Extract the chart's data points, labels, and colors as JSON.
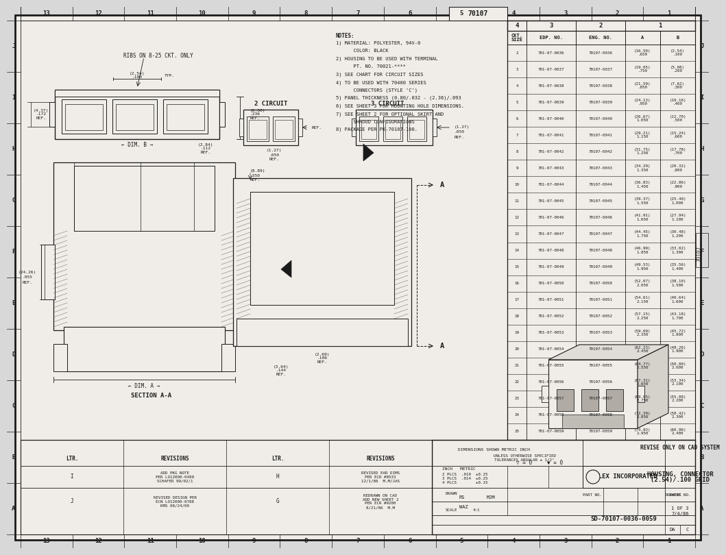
{
  "bg_color": "#d8d8d8",
  "paper_color": "#f0ede8",
  "line_color": "#1a1a1a",
  "title": "HOUSING, CONNECTOR\n(2.54)/.100 GRID",
  "company": "MOLEX INCORPORATED",
  "drawing_number": "SD-70107-0036-0059",
  "sheet": "1 OF 3",
  "date": "7/4/86",
  "notes": [
    "NOTES:",
    "1) MATERIAL: POLYESTER, 94V-0",
    "      COLOR: BLACK",
    "2) HOUSING TO BE USED WITH TERMINAL",
    "      PT. NO. 70021-****",
    "3) SEE CHART FOR CIRCUIT SIZES",
    "4) TO BE USED WITH 70400 SERIES",
    "      CONNECTORS (STYLE 'C')",
    "5) PANEL THICKNESS (0.80/.032 - (2.36)/.093",
    "6) SEE SHEET 3 FOR MOUNTING HOLE DIMENSIONS.",
    "7) SEE SHEET 2 FOR OPTIONAL SKIRT AND",
    "      SHROUD CONFIGURATIONS",
    "8) PACKAGE PER PK-70107-100."
  ],
  "grid_cols": [
    "13",
    "12",
    "11",
    "10",
    "9",
    "8",
    "7",
    "6",
    "4",
    "3",
    "2",
    "1"
  ],
  "grid_rows": [
    "J",
    "I",
    "H",
    "G",
    "F",
    "E",
    "D",
    "C",
    "B",
    "A"
  ],
  "table_data": [
    [
      "2",
      "701-07-0036",
      "70107-0036",
      "(16.50)\n.650",
      "(2.54)\n.100"
    ],
    [
      "3",
      "701-07-0037",
      "70107-0037",
      "(19.05)\n.750",
      "(5.08)\n.200"
    ],
    [
      "4",
      "701-07-0038",
      "70107-0038",
      "(21.59)\n.850",
      "(7.62)\n.300"
    ],
    [
      "5",
      "701-07-0039",
      "70107-0039",
      "(24.13)\n.950",
      "(10.16)\n.400"
    ],
    [
      "6",
      "701-07-0040",
      "70107-0040",
      "(26.67)\n1.050",
      "(12.70)\n.500"
    ],
    [
      "7",
      "701-07-0041",
      "70107-0041",
      "(29.21)\n1.150",
      "(15.24)\n.600"
    ],
    [
      "8",
      "701-07-0042",
      "70107-0042",
      "(31.75)\n1.250",
      "(17.78)\n.700"
    ],
    [
      "9",
      "701-07-0043",
      "70107-0043",
      "(34.29)\n1.350",
      "(20.32)\n.800"
    ],
    [
      "10",
      "701-07-0044",
      "70107-0044",
      "(36.83)\n1.450",
      "(22.86)\n.900"
    ],
    [
      "11",
      "701-07-0045",
      "70107-0045",
      "(39.37)\n1.550",
      "(25.40)\n1.000"
    ],
    [
      "12",
      "701-07-0046",
      "70107-0046",
      "(41.91)\n1.650",
      "(27.94)\n1.100"
    ],
    [
      "13",
      "701-07-0047",
      "70107-0047",
      "(44.45)\n1.750",
      "(30.48)\n1.200"
    ],
    [
      "14",
      "701-07-0048",
      "70107-0048",
      "(46.99)\n1.850",
      "(33.02)\n1.300"
    ],
    [
      "15",
      "701-07-0049",
      "70107-0049",
      "(49.53)\n1.950",
      "(35.56)\n1.400"
    ],
    [
      "16",
      "701-07-0050",
      "70107-0050",
      "(52.07)\n2.050",
      "(38.10)\n1.500"
    ],
    [
      "17",
      "701-07-0051",
      "70107-0051",
      "(54.61)\n2.150",
      "(40.64)\n1.600"
    ],
    [
      "18",
      "701-07-0052",
      "70107-0052",
      "(57.15)\n2.250",
      "(43.18)\n1.700"
    ],
    [
      "19",
      "701-07-0053",
      "70107-0053",
      "(59.69)\n2.350",
      "(45.72)\n1.800"
    ],
    [
      "20",
      "701-07-0054",
      "70107-0054",
      "(62.23)\n2.450",
      "(48.26)\n1.900"
    ],
    [
      "21",
      "701-07-0055",
      "70107-0055",
      "(64.77)\n2.550",
      "(50.80)\n2.000"
    ],
    [
      "22",
      "701-07-0056",
      "70107-0056",
      "(67.31)\n2.650",
      "(53.34)\n2.100"
    ],
    [
      "23",
      "701-07-0057",
      "70107-0057",
      "(69.85)\n2.750",
      "(55.88)\n2.200"
    ],
    [
      "24",
      "701-07-0058",
      "70107-0058",
      "(72.39)\n2.850",
      "(58.42)\n2.300"
    ],
    [
      "25",
      "701-07-0059",
      "70107-0059",
      "(74.93)\n2.950",
      "(60.96)\n2.400"
    ]
  ]
}
